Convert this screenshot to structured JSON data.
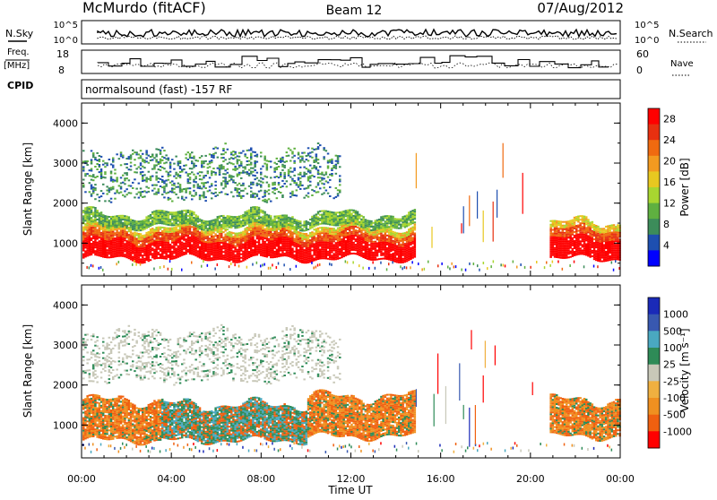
{
  "header": {
    "station": "McMurdo (fitACF)",
    "beam": "Beam 12",
    "date": "07/Aug/2012"
  },
  "mode": {
    "label": "CPID",
    "description": "normalsound (fast) -157 RF"
  },
  "top_panels": {
    "nsky_label": "N.Sky",
    "nsearch_label": "N.Search",
    "freq_label_line1": "Freq.",
    "freq_label_line2": "[MHz]",
    "nave_label": "Nave",
    "noise_ticks": [
      "10^5",
      "10^0"
    ],
    "freq_ticks": [
      "18",
      "8"
    ],
    "nave_ticks": [
      "60",
      "0"
    ]
  },
  "colors": {
    "power": [
      "#0000ff",
      "#1e4fb0",
      "#3c8c5a",
      "#5fb040",
      "#a8d630",
      "#e8c820",
      "#f39a20",
      "#f06a10",
      "#e83010",
      "#ff0000"
    ],
    "velocity": [
      "#ff0000",
      "#f06010",
      "#f09020",
      "#f0b040",
      "#c8c8b8",
      "#2e8b57",
      "#4aa8c0",
      "#3858b0",
      "#1a2ab8"
    ]
  },
  "chart_data": [
    {
      "type": "heatmap",
      "quantity": "power",
      "title": "",
      "xlabel": "Time UT",
      "ylabel": "Slant Range [km]",
      "xlim": [
        "00:00",
        "24:00"
      ],
      "x_ticks": [
        "00:00",
        "04:00",
        "08:00",
        "12:00",
        "16:00",
        "20:00",
        "00:00"
      ],
      "ylim": [
        180,
        4500
      ],
      "y_ticks": [
        1000,
        2000,
        3000,
        4000
      ],
      "colorbar": {
        "label": "Power [dB]",
        "ticks": [
          4,
          8,
          12,
          16,
          20,
          24,
          28
        ],
        "range": [
          0,
          30
        ]
      },
      "regions": [
        {
          "start_hour": 0.0,
          "end_hour": 14.8,
          "range_km_low": 600,
          "range_km_high": 1400,
          "value": 28
        },
        {
          "start_hour": 0.0,
          "end_hour": 14.8,
          "range_km_low": 1400,
          "range_km_high": 1700,
          "value": 16
        },
        {
          "start_hour": 20.8,
          "end_hour": 24.0,
          "range_km_low": 600,
          "range_km_high": 1500,
          "value": 28
        },
        {
          "start_hour": 0.0,
          "end_hour": 11.5,
          "range_km_low": 2100,
          "range_km_high": 3300,
          "value": 6
        }
      ]
    },
    {
      "type": "heatmap",
      "quantity": "velocity",
      "title": "",
      "xlabel": "Time UT",
      "ylabel": "Slant Range [km]",
      "xlim": [
        "00:00",
        "24:00"
      ],
      "x_ticks": [
        "00:00",
        "04:00",
        "08:00",
        "12:00",
        "16:00",
        "20:00",
        "00:00"
      ],
      "ylim": [
        180,
        4500
      ],
      "y_ticks": [
        1000,
        2000,
        3000,
        4000
      ],
      "colorbar": {
        "label": "Velocity [m s⁻¹]",
        "ticks": [
          "1000",
          "500",
          "100",
          "25",
          "-25",
          "-100",
          "-500",
          "-1000"
        ]
      },
      "regions": [
        {
          "start_hour": 0.0,
          "end_hour": 3.5,
          "range_km_low": 600,
          "range_km_high": 1600,
          "value": -300
        },
        {
          "start_hour": 3.5,
          "end_hour": 10.0,
          "range_km_low": 600,
          "range_km_high": 1500,
          "value": 300
        },
        {
          "start_hour": 10.0,
          "end_hour": 14.8,
          "range_km_low": 700,
          "range_km_high": 1700,
          "value": -300
        },
        {
          "start_hour": 20.8,
          "end_hour": 24.0,
          "range_km_low": 700,
          "range_km_high": 1600,
          "value": -300
        },
        {
          "start_hour": 0.0,
          "end_hour": 11.5,
          "range_km_low": 2100,
          "range_km_high": 3300,
          "value": 0
        }
      ]
    }
  ]
}
